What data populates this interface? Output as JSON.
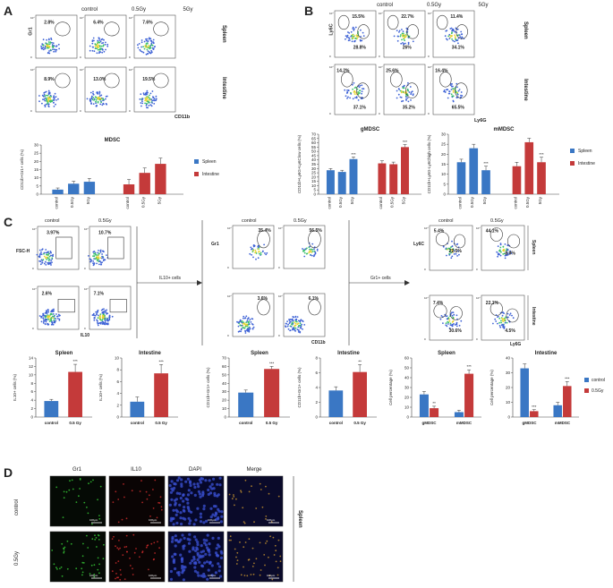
{
  "panels": {
    "A": {
      "letter": "A",
      "column_headers": [
        "control",
        "0.5Gy",
        "5Gy"
      ],
      "row_labels": [
        "Spleen",
        "Intestine"
      ],
      "y_axis": "Gr1",
      "x_axis": "CD11b",
      "gates_spleen": [
        "2.8%",
        "6.4%",
        "7.6%"
      ],
      "gates_intestine": [
        "8.9%",
        "13.0%",
        "19.5%"
      ]
    },
    "B": {
      "letter": "B",
      "column_headers": [
        "control",
        "0.5Gy",
        "5Gy"
      ],
      "row_labels": [
        "Spleen",
        "Intestine"
      ],
      "y_axis": "Ly6C",
      "x_axis": "Ly6G",
      "spleen_top": [
        "15.5%",
        "22.7%",
        "11.4%"
      ],
      "spleen_bottom": [
        "28.8%",
        "26%",
        "34.1%"
      ],
      "intestine_top": [
        "14.2%",
        "25.6%",
        "16.4%"
      ],
      "intestine_bottom": [
        "37.1%",
        "35.2%",
        "65.5%"
      ]
    },
    "C": {
      "letter": "C",
      "column_headers": [
        "control",
        "0.5Gy"
      ],
      "fsc_label": "FSC-H",
      "il10_label": "IL10",
      "il10_gates": [
        "3.97%",
        "10.7%",
        "2.6%",
        "7.1%"
      ],
      "arrow_1": "IL10+ cells",
      "arrow_2": "Gr1+ cells",
      "gr1_label": "Gr1",
      "cd11b_label": "CD11b",
      "gr1_gates": [
        "35.4%",
        "56.5%",
        "3.6%",
        "6.1%"
      ],
      "ly6c_label": "Ly6C",
      "ly6g_label": "Ly6G",
      "subset_gates": [
        "5.4%",
        "22.5%",
        "44.1%",
        "8.9%",
        "7.4%",
        "30.6%",
        "22.1%",
        "4.5%"
      ],
      "row_labels": [
        "Spleen",
        "Intestine"
      ]
    },
    "D": {
      "letter": "D",
      "column_headers": [
        "Gr1",
        "IL10",
        "DAPI",
        "Merge"
      ],
      "row_labels": [
        "control",
        "0.5Gy"
      ],
      "side_label": "Spleen",
      "scale_bar": "100μm"
    }
  },
  "colors": {
    "spleen": "#3a77c4",
    "intestine": "#c43a3a",
    "control": "#3a77c4",
    "treated": "#c43a3a"
  },
  "chart_data": [
    {
      "type": "bar",
      "title": "MDSC",
      "ylabel": "CD11b+Gr1+ cells (%)",
      "ylim": [
        0,
        30
      ],
      "yticks": [
        0,
        5,
        10,
        15,
        20,
        25,
        30
      ],
      "groups": [
        {
          "name": "Spleen",
          "categories": [
            "control",
            "0.5Gy",
            "5Gy"
          ],
          "values": [
            2.8,
            6.4,
            7.6
          ],
          "errors": [
            1,
            1.5,
            2
          ]
        },
        {
          "name": "Intestine",
          "categories": [
            "control",
            "0.5Gy",
            "5Gy"
          ],
          "values": [
            6,
            13,
            18.5
          ],
          "errors": [
            3,
            3,
            3.5
          ]
        }
      ],
      "legend": [
        "Spleen",
        "Intestine"
      ]
    },
    {
      "type": "bar",
      "title": "gMDSC",
      "ylabel": "CD11b+Ly6G+Ly6Clow cells (%)",
      "ylim": [
        0,
        70
      ],
      "yticks": [
        0,
        5,
        10,
        15,
        20,
        25,
        30,
        35,
        40,
        45,
        50,
        55,
        60,
        65,
        70
      ],
      "groups": [
        {
          "name": "Spleen",
          "categories": [
            "control",
            "0.5Gy",
            "5Gy"
          ],
          "values": [
            28,
            26,
            41
          ],
          "errors": [
            2,
            2,
            2.5
          ]
        },
        {
          "name": "Intestine",
          "categories": [
            "control",
            "0.5Gy",
            "5Gy"
          ],
          "values": [
            36,
            35,
            55
          ],
          "errors": [
            3,
            2.5,
            3
          ]
        }
      ],
      "annotations": [
        "***",
        "***"
      ]
    },
    {
      "type": "bar",
      "title": "mMDSC",
      "ylabel": "CD11b+Ly6G-Ly6Chigh cells (%)",
      "ylim": [
        0,
        30
      ],
      "yticks": [
        0,
        5,
        10,
        15,
        20,
        25,
        30
      ],
      "groups": [
        {
          "name": "Spleen",
          "categories": [
            "control",
            "0.5Gy",
            "5Gy"
          ],
          "values": [
            16,
            23,
            12
          ],
          "errors": [
            1.5,
            2,
            2
          ]
        },
        {
          "name": "Intestine",
          "categories": [
            "control",
            "0.5Gy",
            "5Gy"
          ],
          "values": [
            14,
            26,
            16
          ],
          "errors": [
            2,
            2,
            2.5
          ]
        }
      ],
      "legend": [
        "Spleen",
        "Intestine"
      ],
      "annotations": [
        "***",
        "***"
      ]
    },
    {
      "type": "bar",
      "title": "Spleen",
      "ylabel": "IL10+ cells (%)",
      "ylim": [
        0,
        14
      ],
      "yticks": [
        0,
        2,
        4,
        6,
        8,
        10,
        12,
        14
      ],
      "categories": [
        "control",
        "0.5 Gy"
      ],
      "values": [
        3.8,
        10.7
      ],
      "errors": [
        0.4,
        1.8
      ],
      "annotations": [
        "",
        "***"
      ]
    },
    {
      "type": "bar",
      "title": "Intestine",
      "ylabel": "IL10+ cells (%)",
      "ylim": [
        0,
        10
      ],
      "yticks": [
        0,
        2,
        4,
        6,
        8,
        10
      ],
      "categories": [
        "control",
        "0.5 Gy"
      ],
      "values": [
        2.6,
        7.4
      ],
      "errors": [
        0.8,
        1.5
      ],
      "annotations": [
        "",
        "***"
      ]
    },
    {
      "type": "bar",
      "title": "Spleen",
      "ylabel": "CD11b+Gr1+ cells (%)",
      "ylim": [
        0,
        70
      ],
      "yticks": [
        0,
        10,
        20,
        30,
        40,
        50,
        60,
        70
      ],
      "categories": [
        "control",
        "0.5 Gy"
      ],
      "values": [
        29,
        57
      ],
      "errors": [
        3,
        3
      ],
      "annotations": [
        "",
        "***"
      ]
    },
    {
      "type": "bar",
      "title": "Intestine",
      "ylabel": "CD11b+Gr1+ cells (%)",
      "ylim": [
        0,
        8
      ],
      "yticks": [
        0,
        2,
        4,
        6,
        8
      ],
      "categories": [
        "control",
        "0.5 Gy"
      ],
      "values": [
        3.6,
        6.1
      ],
      "errors": [
        0.5,
        1
      ],
      "annotations": [
        "",
        "**"
      ]
    },
    {
      "type": "bar",
      "title": "Spleen",
      "ylabel": "Cell percentage (%)",
      "ylim": [
        0,
        60
      ],
      "yticks": [
        0,
        10,
        20,
        30,
        40,
        50,
        60
      ],
      "categories": [
        "gMDSC",
        "mMDSC"
      ],
      "series": [
        {
          "name": "control",
          "values": [
            23,
            5
          ]
        },
        {
          "name": "0.5Gy",
          "values": [
            9,
            44
          ]
        }
      ],
      "errors": [
        [
          3,
          2
        ],
        [
          2,
          4
        ]
      ],
      "annotations": [
        "**",
        "***"
      ]
    },
    {
      "type": "bar",
      "title": "Intestine",
      "ylabel": "Cell percentage (%)",
      "ylim": [
        0,
        40
      ],
      "yticks": [
        0,
        10,
        20,
        30,
        40
      ],
      "categories": [
        "gMDSC",
        "mMDSC"
      ],
      "series": [
        {
          "name": "control",
          "values": [
            33,
            8
          ]
        },
        {
          "name": "0.5Gy",
          "values": [
            4,
            21
          ]
        }
      ],
      "errors": [
        [
          3,
          2
        ],
        [
          1,
          3
        ]
      ],
      "annotations": [
        "***",
        "***"
      ],
      "legend": [
        "control",
        "0.5Gy"
      ]
    }
  ]
}
